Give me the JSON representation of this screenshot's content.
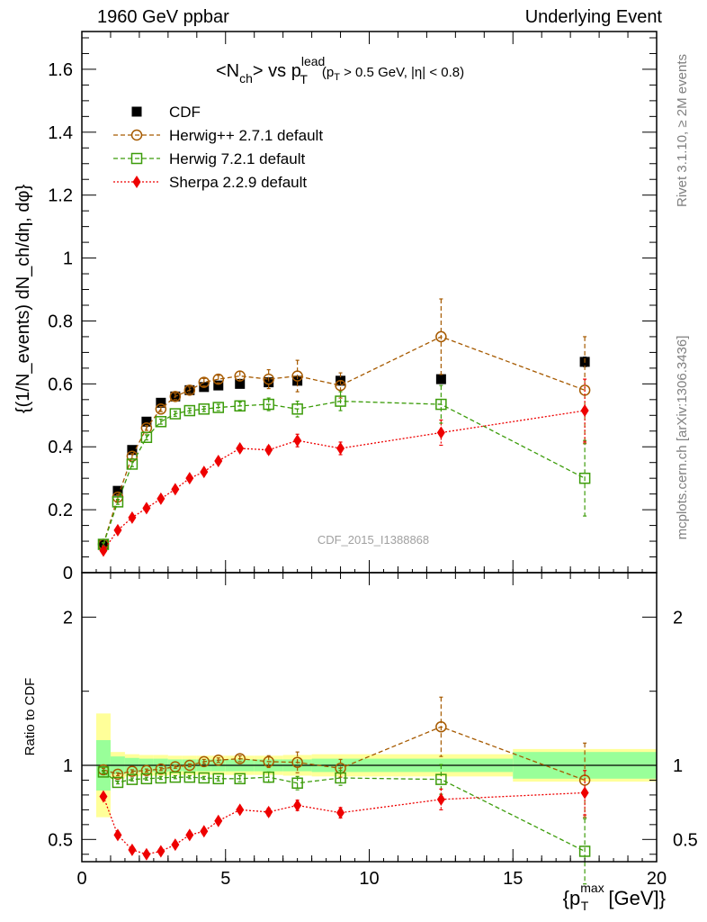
{
  "header": {
    "left": "1960 GeV ppbar",
    "right": "Underlying Event"
  },
  "side_labels": {
    "rivet": "Rivet 3.1.10, ≥ 2M events",
    "mcplots": "mcplots.cern.ch [arXiv:1306.3436]"
  },
  "chart_data": [
    {
      "type": "scatter",
      "panel": "main",
      "title": "<N_ch> vs p_T^lead (p_T > 0.5 GeV, |η| < 0.8)",
      "title_parts": {
        "pre": "<N",
        "sub1": "ch",
        "mid": "> vs p",
        "sup2": "lead",
        "sub2": "T",
        "cut": "(p",
        "cut_sub": "T",
        "cut_post": " > 0.5 GeV, |η| < 0.8)"
      },
      "ylabel": "{(1/N_events) dN_ch/dη, dφ}",
      "watermark": "CDF_2015_I1388868",
      "xlim": [
        0,
        20
      ],
      "ylim": [
        0,
        1.72
      ],
      "y_ticks": [
        {
          "v": 0,
          "label": "0"
        },
        {
          "v": 0.2,
          "label": "0.2"
        },
        {
          "v": 0.4,
          "label": "0.4"
        },
        {
          "v": 0.6,
          "label": "0.6"
        },
        {
          "v": 0.8,
          "label": "0.8"
        },
        {
          "v": 1.0,
          "label": "1"
        },
        {
          "v": 1.2,
          "label": "1.2"
        },
        {
          "v": 1.4,
          "label": "1.4"
        },
        {
          "v": 1.6,
          "label": "1.6"
        }
      ],
      "legend_position": "top-left",
      "series": [
        {
          "name": "CDF",
          "marker": "filled-square",
          "color": "#000000",
          "x": [
            0.75,
            1.25,
            1.75,
            2.25,
            2.75,
            3.25,
            3.75,
            4.25,
            4.75,
            5.5,
            6.5,
            7.5,
            9.0,
            12.5,
            17.5
          ],
          "y": [
            0.09,
            0.26,
            0.39,
            0.48,
            0.54,
            0.56,
            0.58,
            0.59,
            0.595,
            0.6,
            0.605,
            0.61,
            0.61,
            0.615,
            0.67
          ],
          "err": [
            0.01,
            0.01,
            0.01,
            0.01,
            0.01,
            0.01,
            0.01,
            0.01,
            0.01,
            0.01,
            0.01,
            0.01,
            0.01,
            0.01,
            0.015
          ]
        },
        {
          "name": "Herwig++ 2.7.1 default",
          "marker": "open-circle",
          "color": "#a65a00",
          "line": "dashed",
          "x": [
            0.75,
            1.25,
            1.75,
            2.25,
            2.75,
            3.25,
            3.75,
            4.25,
            4.75,
            5.5,
            6.5,
            7.5,
            9.0,
            12.5,
            17.5
          ],
          "y": [
            0.09,
            0.24,
            0.37,
            0.46,
            0.52,
            0.56,
            0.58,
            0.605,
            0.615,
            0.625,
            0.615,
            0.625,
            0.595,
            0.75,
            0.58
          ],
          "err": [
            0.005,
            0.008,
            0.008,
            0.008,
            0.008,
            0.01,
            0.01,
            0.012,
            0.012,
            0.015,
            0.03,
            0.05,
            0.04,
            0.12,
            0.17
          ]
        },
        {
          "name": "Herwig 7.2.1 default",
          "marker": "open-square",
          "color": "#3c9c0a",
          "line": "dashed",
          "x": [
            0.75,
            1.25,
            1.75,
            2.25,
            2.75,
            3.25,
            3.75,
            4.25,
            4.75,
            5.5,
            6.5,
            7.5,
            9.0,
            12.5,
            17.5
          ],
          "y": [
            0.09,
            0.225,
            0.345,
            0.43,
            0.48,
            0.505,
            0.515,
            0.52,
            0.525,
            0.53,
            0.535,
            0.52,
            0.545,
            0.535,
            0.3
          ],
          "err": [
            0.005,
            0.008,
            0.008,
            0.008,
            0.008,
            0.008,
            0.008,
            0.008,
            0.01,
            0.012,
            0.02,
            0.025,
            0.03,
            0.06,
            0.12
          ]
        },
        {
          "name": "Sherpa 2.2.9 default",
          "marker": "filled-diamond",
          "color": "#ee0000",
          "line": "dotted",
          "x": [
            0.75,
            1.25,
            1.75,
            2.25,
            2.75,
            3.25,
            3.75,
            4.25,
            4.75,
            5.5,
            6.5,
            7.5,
            9.0,
            12.5,
            17.5
          ],
          "y": [
            0.07,
            0.135,
            0.175,
            0.205,
            0.235,
            0.265,
            0.3,
            0.32,
            0.355,
            0.395,
            0.39,
            0.42,
            0.395,
            0.445,
            0.515
          ],
          "err": [
            0.004,
            0.005,
            0.005,
            0.005,
            0.006,
            0.007,
            0.008,
            0.008,
            0.01,
            0.01,
            0.012,
            0.02,
            0.02,
            0.04,
            0.1
          ]
        }
      ]
    },
    {
      "type": "scatter",
      "panel": "ratio",
      "ylabel": "Ratio to CDF",
      "xlabel": "{p_T^max [GeV]}",
      "xlabel_parts": {
        "pre": "{p",
        "sub": "T",
        "sup": "max",
        "post": " [GeV]}"
      },
      "xlim": [
        0,
        20
      ],
      "ylim": [
        0.35,
        2.3
      ],
      "x_ticks": [
        {
          "v": 0,
          "label": "0"
        },
        {
          "v": 5,
          "label": "5"
        },
        {
          "v": 10,
          "label": "10"
        },
        {
          "v": 15,
          "label": "15"
        },
        {
          "v": 20,
          "label": "20"
        }
      ],
      "y_ticks": [
        {
          "v": 0.5,
          "label": "0.5"
        },
        {
          "v": 1.0,
          "label": "1"
        },
        {
          "v": 2.0,
          "label": "2"
        }
      ],
      "reference_line": 1.0,
      "bands": {
        "bin_edges": [
          0.5,
          1.0,
          1.5,
          2.0,
          2.5,
          3.0,
          3.5,
          4.0,
          4.5,
          5.0,
          6.0,
          7.0,
          8.0,
          10.0,
          15.0,
          20.0
        ],
        "stat_halfwidth": [
          0.17,
          0.06,
          0.05,
          0.045,
          0.045,
          0.04,
          0.04,
          0.04,
          0.04,
          0.04,
          0.04,
          0.04,
          0.045,
          0.045,
          0.09
        ],
        "total_halfwidth": [
          0.35,
          0.09,
          0.075,
          0.07,
          0.07,
          0.065,
          0.065,
          0.065,
          0.065,
          0.065,
          0.065,
          0.07,
          0.075,
          0.075,
          0.11
        ]
      },
      "series": [
        {
          "name": "Herwig++ 2.7.1 default",
          "marker": "open-circle",
          "color": "#a65a00",
          "line": "dashed",
          "x": [
            0.75,
            1.25,
            1.75,
            2.25,
            2.75,
            3.25,
            3.75,
            4.25,
            4.75,
            5.5,
            6.5,
            7.5,
            9.0,
            12.5,
            17.5
          ],
          "y": [
            0.97,
            0.94,
            0.96,
            0.965,
            0.975,
            0.99,
            1.0,
            1.025,
            1.035,
            1.045,
            1.025,
            1.02,
            0.98,
            1.26,
            0.9
          ],
          "err": [
            0.01,
            0.01,
            0.01,
            0.01,
            0.01,
            0.01,
            0.01,
            0.015,
            0.015,
            0.02,
            0.04,
            0.07,
            0.06,
            0.2,
            0.25
          ]
        },
        {
          "name": "Herwig 7.2.1 default",
          "marker": "open-square",
          "color": "#3c9c0a",
          "line": "dashed",
          "x": [
            0.75,
            1.25,
            1.75,
            2.25,
            2.75,
            3.25,
            3.75,
            4.25,
            4.75,
            5.5,
            6.5,
            7.5,
            9.0,
            12.5,
            17.5
          ],
          "y": [
            0.955,
            0.885,
            0.905,
            0.91,
            0.915,
            0.92,
            0.92,
            0.915,
            0.91,
            0.91,
            0.92,
            0.88,
            0.915,
            0.905,
            0.42
          ],
          "err": [
            0.01,
            0.01,
            0.01,
            0.01,
            0.01,
            0.01,
            0.01,
            0.01,
            0.015,
            0.02,
            0.035,
            0.045,
            0.05,
            0.1,
            0.22
          ]
        },
        {
          "name": "Sherpa 2.2.9 default",
          "marker": "filled-diamond",
          "color": "#ee0000",
          "line": "dotted",
          "x": [
            0.75,
            1.25,
            1.75,
            2.25,
            2.75,
            3.25,
            3.75,
            4.25,
            4.75,
            5.5,
            6.5,
            7.5,
            9.0,
            12.5,
            17.5
          ],
          "y": [
            0.79,
            0.53,
            0.43,
            0.4,
            0.42,
            0.465,
            0.53,
            0.555,
            0.625,
            0.7,
            0.685,
            0.73,
            0.68,
            0.77,
            0.815
          ],
          "err": [
            0.01,
            0.01,
            0.01,
            0.01,
            0.01,
            0.012,
            0.014,
            0.015,
            0.018,
            0.02,
            0.025,
            0.035,
            0.035,
            0.07,
            0.15
          ]
        }
      ]
    }
  ]
}
